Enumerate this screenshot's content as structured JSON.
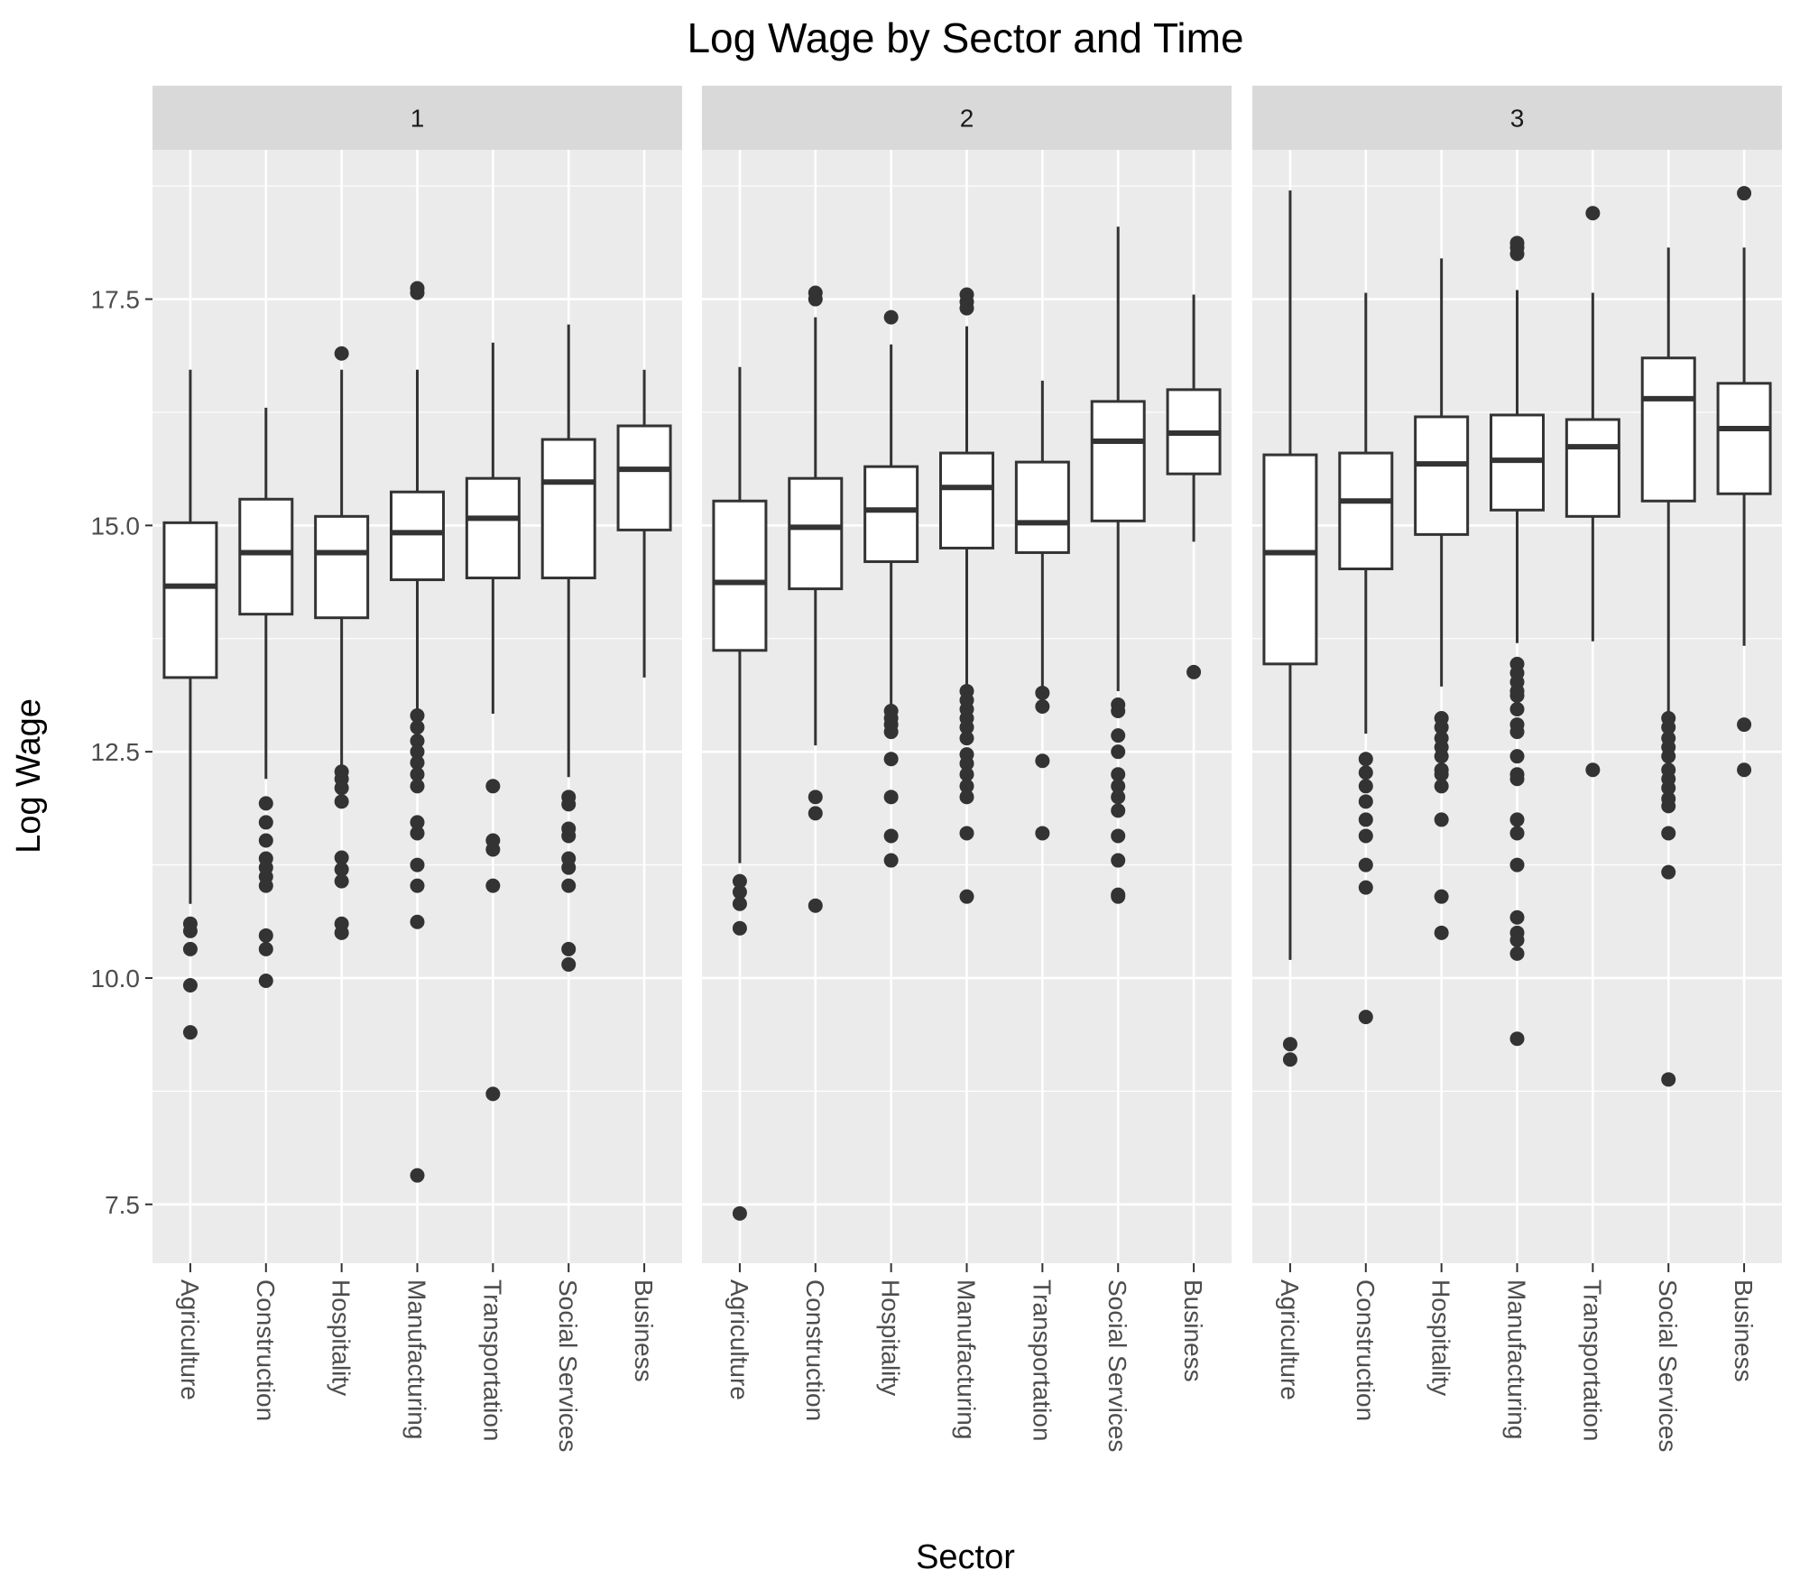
{
  "chart_data": {
    "type": "boxplot",
    "title": "Log Wage by Sector and Time",
    "xlabel": "Sector",
    "ylabel": "Log Wage",
    "ylim": [
      6.85,
      19.15
    ],
    "yticks": [
      "7.5",
      "10.0",
      "12.5",
      "15.0",
      "17.5"
    ],
    "ytick_values": [
      7.5,
      10.0,
      12.5,
      15.0,
      17.5
    ],
    "categories": [
      "Agriculture",
      "Construction",
      "Hospitality",
      "Manufacturing",
      "Transportation",
      "Social Services",
      "Business"
    ],
    "grid": true,
    "colors": {
      "panel": "#ebebeb",
      "strip": "#d9d9d9",
      "grid": "#ffffff",
      "box_fill": "#ffffff",
      "line": "#333333",
      "point": "#333333"
    },
    "facets": [
      {
        "label": "1",
        "boxes": [
          {
            "category": "Agriculture",
            "lower": 10.82,
            "q1": 13.32,
            "median": 14.33,
            "q3": 15.03,
            "upper": 16.72,
            "outliers": [
              10.6,
              10.52,
              10.32,
              9.92,
              9.4
            ]
          },
          {
            "category": "Construction",
            "lower": 12.2,
            "q1": 14.02,
            "median": 14.7,
            "q3": 15.29,
            "upper": 16.3,
            "outliers": [
              11.93,
              11.72,
              11.52,
              11.32,
              11.22,
              11.12,
              11.02,
              10.47,
              10.32,
              9.97
            ]
          },
          {
            "category": "Hospitality",
            "lower": 12.35,
            "q1": 13.98,
            "median": 14.7,
            "q3": 15.1,
            "upper": 16.72,
            "outliers": [
              16.9,
              12.28,
              12.2,
              12.1,
              11.95,
              11.33,
              11.2,
              11.07,
              10.6,
              10.5
            ]
          },
          {
            "category": "Manufacturing",
            "lower": 12.95,
            "q1": 14.4,
            "median": 14.92,
            "q3": 15.37,
            "upper": 16.72,
            "outliers": [
              17.62,
              17.57,
              12.9,
              12.77,
              12.62,
              12.5,
              12.38,
              12.25,
              12.12,
              11.72,
              11.6,
              11.25,
              11.02,
              10.62,
              7.82
            ]
          },
          {
            "category": "Transportation",
            "lower": 12.92,
            "q1": 14.42,
            "median": 15.08,
            "q3": 15.52,
            "upper": 17.02,
            "outliers": [
              12.12,
              11.52,
              11.42,
              11.02,
              8.72
            ]
          },
          {
            "category": "Social Services",
            "lower": 12.22,
            "q1": 14.42,
            "median": 15.48,
            "q3": 15.95,
            "upper": 17.22,
            "outliers": [
              12.0,
              11.92,
              11.65,
              11.57,
              11.32,
              11.22,
              11.02,
              10.32,
              10.15
            ]
          },
          {
            "category": "Business",
            "lower": 13.32,
            "q1": 14.95,
            "median": 15.62,
            "q3": 16.1,
            "upper": 16.72,
            "outliers": []
          }
        ]
      },
      {
        "label": "2",
        "boxes": [
          {
            "category": "Agriculture",
            "lower": 11.27,
            "q1": 13.62,
            "median": 14.37,
            "q3": 15.27,
            "upper": 16.75,
            "outliers": [
              11.07,
              10.95,
              10.82,
              10.55,
              7.4
            ]
          },
          {
            "category": "Construction",
            "lower": 12.57,
            "q1": 14.3,
            "median": 14.98,
            "q3": 15.52,
            "upper": 17.3,
            "outliers": [
              17.57,
              17.5,
              12.0,
              11.82,
              10.8
            ]
          },
          {
            "category": "Hospitality",
            "lower": 13.02,
            "q1": 14.6,
            "median": 15.17,
            "q3": 15.65,
            "upper": 17.0,
            "outliers": [
              17.3,
              12.95,
              12.87,
              12.8,
              12.72,
              12.42,
              12.0,
              11.57,
              11.3
            ]
          },
          {
            "category": "Manufacturing",
            "lower": 13.22,
            "q1": 14.75,
            "median": 15.42,
            "q3": 15.8,
            "upper": 17.2,
            "outliers": [
              17.55,
              17.47,
              17.4,
              13.17,
              13.07,
              12.97,
              12.87,
              12.77,
              12.65,
              12.47,
              12.37,
              12.25,
              12.12,
              12.0,
              11.6,
              10.9
            ]
          },
          {
            "category": "Transportation",
            "lower": 13.17,
            "q1": 14.7,
            "median": 15.03,
            "q3": 15.7,
            "upper": 16.6,
            "outliers": [
              13.15,
              13.0,
              12.4,
              11.6
            ]
          },
          {
            "category": "Social Services",
            "lower": 13.17,
            "q1": 15.05,
            "median": 15.93,
            "q3": 16.37,
            "upper": 18.3,
            "outliers": [
              13.02,
              12.95,
              12.68,
              12.5,
              12.25,
              12.12,
              12.0,
              11.85,
              11.57,
              11.3,
              10.92,
              10.9
            ]
          },
          {
            "category": "Business",
            "lower": 14.82,
            "q1": 15.57,
            "median": 16.02,
            "q3": 16.5,
            "upper": 17.55,
            "outliers": [
              13.38
            ]
          }
        ]
      },
      {
        "label": "3",
        "boxes": [
          {
            "category": "Agriculture",
            "lower": 10.2,
            "q1": 13.47,
            "median": 14.7,
            "q3": 15.78,
            "upper": 18.7,
            "outliers": [
              9.27,
              9.1
            ]
          },
          {
            "category": "Construction",
            "lower": 12.7,
            "q1": 14.52,
            "median": 15.27,
            "q3": 15.8,
            "upper": 17.57,
            "outliers": [
              12.42,
              12.27,
              12.12,
              11.95,
              11.75,
              11.57,
              11.25,
              11.0,
              9.57
            ]
          },
          {
            "category": "Hospitality",
            "lower": 13.22,
            "q1": 14.9,
            "median": 15.68,
            "q3": 16.2,
            "upper": 17.95,
            "outliers": [
              12.87,
              12.77,
              12.65,
              12.55,
              12.45,
              12.3,
              12.25,
              12.12,
              11.75,
              10.9,
              10.5
            ]
          },
          {
            "category": "Manufacturing",
            "lower": 13.7,
            "q1": 15.17,
            "median": 15.72,
            "q3": 16.22,
            "upper": 17.6,
            "outliers": [
              18.12,
              18.07,
              18.0,
              13.47,
              13.37,
              13.27,
              13.17,
              13.12,
              12.97,
              12.8,
              12.72,
              12.45,
              12.25,
              12.2,
              11.75,
              11.6,
              11.25,
              10.67,
              10.5,
              10.42,
              10.27,
              9.33
            ]
          },
          {
            "category": "Transportation",
            "lower": 13.72,
            "q1": 15.1,
            "median": 15.87,
            "q3": 16.17,
            "upper": 17.57,
            "outliers": [
              18.45,
              12.3
            ]
          },
          {
            "category": "Social Services",
            "lower": 12.92,
            "q1": 15.27,
            "median": 16.4,
            "q3": 16.85,
            "upper": 18.07,
            "outliers": [
              12.87,
              12.77,
              12.65,
              12.55,
              12.45,
              12.3,
              12.2,
              12.1,
              11.98,
              11.9,
              11.6,
              11.17,
              8.88
            ]
          },
          {
            "category": "Business",
            "lower": 13.67,
            "q1": 15.35,
            "median": 16.07,
            "q3": 16.57,
            "upper": 18.07,
            "outliers": [
              18.67,
              12.8,
              12.3
            ]
          }
        ]
      }
    ]
  }
}
